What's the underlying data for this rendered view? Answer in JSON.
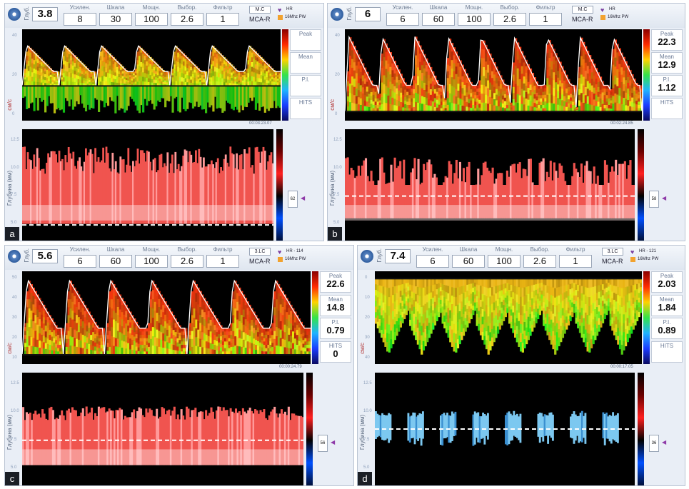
{
  "labels": {
    "depth": "Глуб.",
    "gain": "Усилен.",
    "scale": "Шкала",
    "power": "Мощн.",
    "sample": "Выбор.",
    "filter": "Фильтр",
    "hits": "HITS",
    "depth_axis": "Глубина (мм)",
    "vel_axis": "см/с"
  },
  "colors": {
    "panel_bg": "#e9eef6",
    "accent": "#f2a22e",
    "marker": "#8e3aa8"
  },
  "panels": [
    {
      "tag": "a",
      "depth": "3.8",
      "params": [
        "8",
        "30",
        "100",
        "2.6",
        "1"
      ],
      "mode": "M.C",
      "vessel": "MCA-R",
      "hr": "HR",
      "probe": "16Mhz PW",
      "side": [
        {
          "label": "Peak",
          "value": ""
        },
        {
          "label": "Mean",
          "value": ""
        },
        {
          "label": "P.I.",
          "value": ""
        },
        {
          "label": "HITS",
          "value": ""
        }
      ],
      "time": "00:03:23.07",
      "ticks": [
        "40",
        "20",
        "0"
      ],
      "mticks": [
        "12.5",
        "10.0",
        "7.5",
        "5.0"
      ],
      "bar": "62"
    },
    {
      "tag": "b",
      "depth": "6",
      "params": [
        "6",
        "60",
        "100",
        "2.6",
        "1"
      ],
      "mode": "M.C",
      "vessel": "MCA-R",
      "hr": "HR",
      "probe": "16Mhz PW",
      "side": [
        {
          "label": "Peak",
          "value": "22.3"
        },
        {
          "label": "Mean",
          "value": "12.9"
        },
        {
          "label": "P.I.",
          "value": "1.12"
        },
        {
          "label": "HITS",
          "value": ""
        }
      ],
      "time": "00:02:24.85",
      "ticks": [
        "40",
        "20",
        "0"
      ],
      "mticks": [
        "12.5",
        "10.0",
        "7.5",
        "5.0"
      ],
      "bar": "58"
    },
    {
      "tag": "c",
      "depth": "5.6",
      "params": [
        "6",
        "60",
        "100",
        "2.6",
        "1"
      ],
      "mode": "3.LC",
      "vessel": "MCA-R",
      "hr": "HR - 114",
      "probe": "16Mhz PW",
      "side": [
        {
          "label": "Peak",
          "value": "22.6"
        },
        {
          "label": "Mean",
          "value": "14.8"
        },
        {
          "label": "P.I.",
          "value": "0.79"
        },
        {
          "label": "HITS",
          "value": "0"
        }
      ],
      "time": "00:00:24.79",
      "ticks": [
        "50",
        "40",
        "30",
        "20",
        "10"
      ],
      "mticks": [
        "12.5",
        "10.0",
        "7.5",
        "5.0"
      ],
      "bar": "56"
    },
    {
      "tag": "d",
      "depth": "7.4",
      "params": [
        "6",
        "60",
        "100",
        "2.6",
        "1"
      ],
      "mode": "3.LC",
      "vessel": "MCA-R",
      "hr": "HR - 121",
      "probe": "16Mhz PW",
      "side": [
        {
          "label": "Peak",
          "value": "2.03"
        },
        {
          "label": "Mean",
          "value": "1.84"
        },
        {
          "label": "P.I.",
          "value": "0.89"
        },
        {
          "label": "HITS",
          "value": ""
        }
      ],
      "time": "00:00:17.05",
      "ticks": [
        "0",
        "10",
        "20",
        "30",
        "40"
      ],
      "mticks": [
        "12.5",
        "10.0",
        "7.5",
        "5.0"
      ],
      "bar": "36"
    }
  ]
}
